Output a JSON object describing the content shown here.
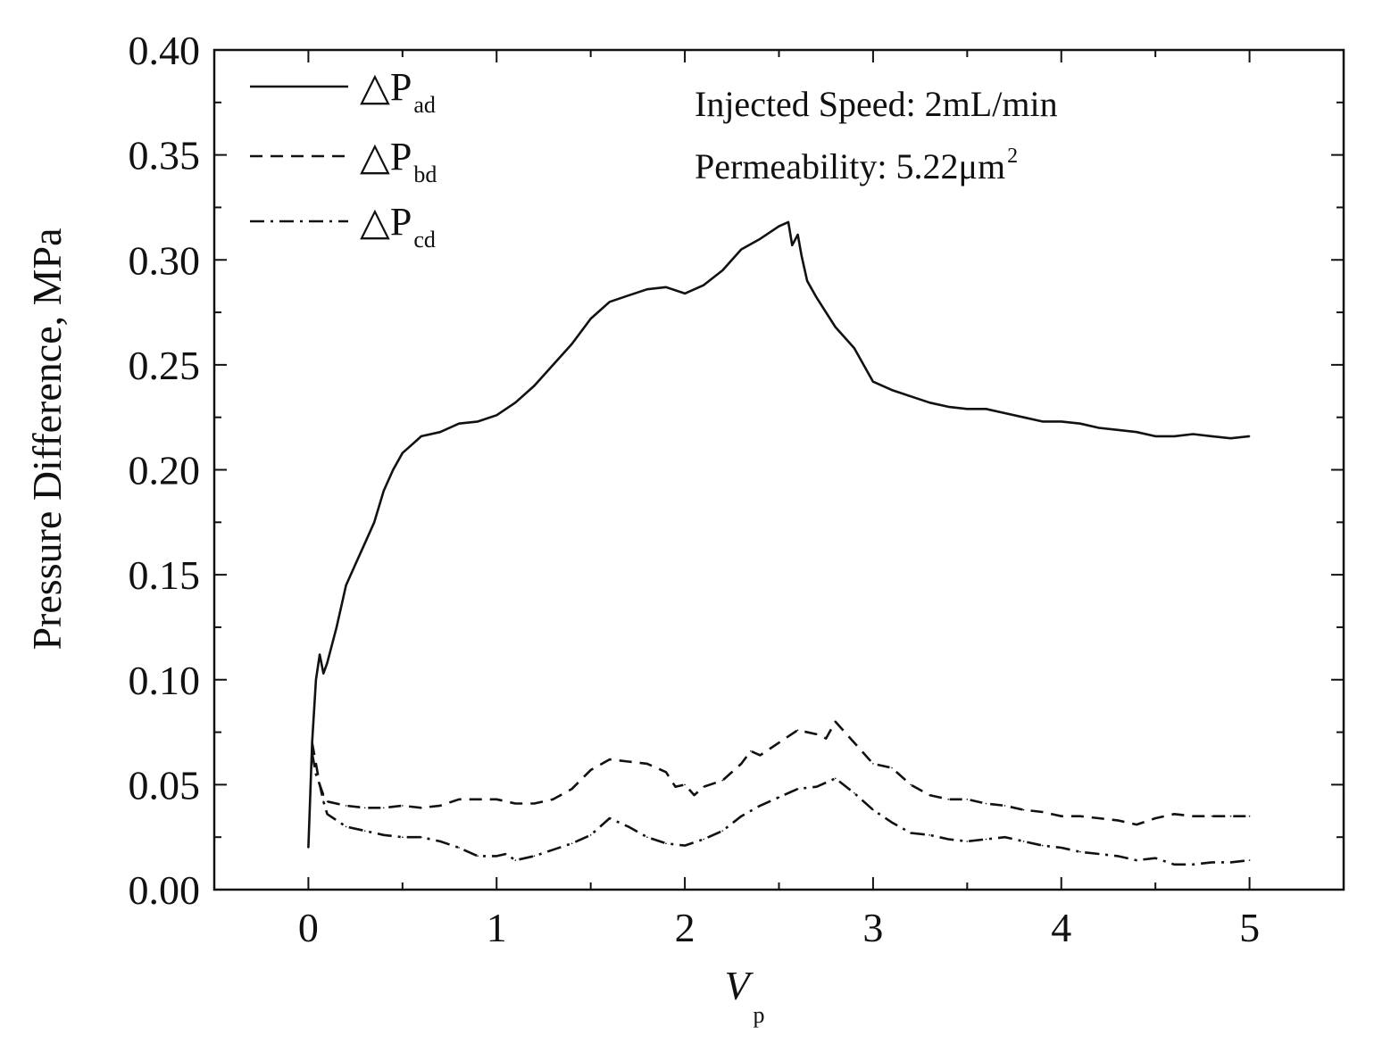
{
  "chart_data": {
    "type": "line",
    "xlabel": "V",
    "xlabel_sub": "p",
    "ylabel": "Pressure Difference, MPa",
    "xlim": [
      -0.5,
      5.5
    ],
    "ylim": [
      0.0,
      0.4
    ],
    "xticks": [
      {
        "value": 0,
        "label": "0"
      },
      {
        "value": 1,
        "label": "1"
      },
      {
        "value": 2,
        "label": "2"
      },
      {
        "value": 3,
        "label": "3"
      },
      {
        "value": 4,
        "label": "4"
      },
      {
        "value": 5,
        "label": "5"
      }
    ],
    "yticks": [
      {
        "value": 0.0,
        "label": "0.00"
      },
      {
        "value": 0.05,
        "label": "0.05"
      },
      {
        "value": 0.1,
        "label": "0.10"
      },
      {
        "value": 0.15,
        "label": "0.15"
      },
      {
        "value": 0.2,
        "label": "0.20"
      },
      {
        "value": 0.25,
        "label": "0.25"
      },
      {
        "value": 0.3,
        "label": "0.30"
      },
      {
        "value": 0.35,
        "label": "0.35"
      },
      {
        "value": 0.4,
        "label": "0.40"
      }
    ],
    "annotations": {
      "speed": "Injected Speed: 2mL/min",
      "permeability": "Permeability: 5.22μm",
      "permeability_sup": "2"
    },
    "legend_position": "top-left",
    "series": [
      {
        "name": "△P",
        "sub": "ad",
        "style": "solid",
        "x": [
          0.0,
          0.02,
          0.04,
          0.06,
          0.08,
          0.1,
          0.15,
          0.2,
          0.25,
          0.3,
          0.35,
          0.4,
          0.45,
          0.5,
          0.55,
          0.6,
          0.7,
          0.8,
          0.9,
          1.0,
          1.1,
          1.2,
          1.3,
          1.4,
          1.5,
          1.6,
          1.7,
          1.8,
          1.9,
          2.0,
          2.1,
          2.2,
          2.3,
          2.4,
          2.5,
          2.55,
          2.57,
          2.6,
          2.62,
          2.65,
          2.7,
          2.8,
          2.9,
          3.0,
          3.1,
          3.2,
          3.3,
          3.4,
          3.5,
          3.6,
          3.7,
          3.8,
          3.9,
          4.0,
          4.1,
          4.2,
          4.3,
          4.4,
          4.5,
          4.6,
          4.7,
          4.8,
          4.9,
          5.0
        ],
        "values": [
          0.02,
          0.07,
          0.1,
          0.112,
          0.103,
          0.108,
          0.125,
          0.145,
          0.155,
          0.165,
          0.175,
          0.19,
          0.2,
          0.208,
          0.212,
          0.216,
          0.218,
          0.222,
          0.223,
          0.226,
          0.232,
          0.24,
          0.25,
          0.26,
          0.272,
          0.28,
          0.283,
          0.286,
          0.287,
          0.284,
          0.288,
          0.295,
          0.305,
          0.31,
          0.316,
          0.318,
          0.307,
          0.312,
          0.302,
          0.29,
          0.282,
          0.268,
          0.258,
          0.242,
          0.238,
          0.235,
          0.232,
          0.23,
          0.229,
          0.229,
          0.227,
          0.225,
          0.223,
          0.223,
          0.222,
          0.22,
          0.219,
          0.218,
          0.216,
          0.216,
          0.217,
          0.216,
          0.215,
          0.216
        ]
      },
      {
        "name": "△P",
        "sub": "bd",
        "style": "dashed",
        "x": [
          0.02,
          0.04,
          0.06,
          0.08,
          0.1,
          0.2,
          0.3,
          0.4,
          0.5,
          0.6,
          0.7,
          0.8,
          0.9,
          1.0,
          1.1,
          1.2,
          1.3,
          1.4,
          1.5,
          1.6,
          1.7,
          1.8,
          1.9,
          1.95,
          2.0,
          2.05,
          2.1,
          2.2,
          2.3,
          2.35,
          2.4,
          2.5,
          2.6,
          2.7,
          2.75,
          2.8,
          2.9,
          3.0,
          3.1,
          3.2,
          3.3,
          3.4,
          3.5,
          3.6,
          3.7,
          3.8,
          3.9,
          4.0,
          4.1,
          4.2,
          4.3,
          4.4,
          4.5,
          4.6,
          4.7,
          4.8,
          4.9,
          5.0
        ],
        "values": [
          0.07,
          0.06,
          0.05,
          0.045,
          0.042,
          0.04,
          0.039,
          0.039,
          0.04,
          0.039,
          0.04,
          0.043,
          0.043,
          0.043,
          0.041,
          0.041,
          0.043,
          0.048,
          0.057,
          0.062,
          0.061,
          0.06,
          0.056,
          0.049,
          0.05,
          0.045,
          0.049,
          0.052,
          0.06,
          0.066,
          0.064,
          0.07,
          0.076,
          0.074,
          0.072,
          0.08,
          0.07,
          0.06,
          0.058,
          0.05,
          0.045,
          0.043,
          0.043,
          0.041,
          0.04,
          0.038,
          0.037,
          0.035,
          0.035,
          0.034,
          0.033,
          0.031,
          0.034,
          0.036,
          0.035,
          0.035,
          0.035,
          0.035
        ]
      },
      {
        "name": "△P",
        "sub": "cd",
        "style": "dashdot",
        "x": [
          0.02,
          0.04,
          0.06,
          0.08,
          0.1,
          0.2,
          0.3,
          0.4,
          0.5,
          0.6,
          0.7,
          0.8,
          0.9,
          1.0,
          1.05,
          1.1,
          1.2,
          1.3,
          1.4,
          1.5,
          1.6,
          1.7,
          1.8,
          1.9,
          2.0,
          2.1,
          2.2,
          2.3,
          2.4,
          2.5,
          2.6,
          2.7,
          2.8,
          2.9,
          3.0,
          3.1,
          3.2,
          3.3,
          3.4,
          3.5,
          3.6,
          3.7,
          3.8,
          3.9,
          4.0,
          4.1,
          4.2,
          4.3,
          4.4,
          4.5,
          4.6,
          4.7,
          4.8,
          4.9,
          5.0
        ],
        "values": [
          0.065,
          0.055,
          0.05,
          0.042,
          0.036,
          0.03,
          0.028,
          0.026,
          0.025,
          0.025,
          0.023,
          0.02,
          0.016,
          0.016,
          0.017,
          0.014,
          0.016,
          0.019,
          0.022,
          0.026,
          0.034,
          0.03,
          0.025,
          0.022,
          0.021,
          0.024,
          0.028,
          0.035,
          0.04,
          0.044,
          0.048,
          0.049,
          0.053,
          0.046,
          0.038,
          0.032,
          0.027,
          0.026,
          0.024,
          0.023,
          0.024,
          0.025,
          0.023,
          0.021,
          0.02,
          0.018,
          0.017,
          0.016,
          0.014,
          0.015,
          0.012,
          0.012,
          0.013,
          0.013,
          0.014
        ]
      }
    ]
  }
}
